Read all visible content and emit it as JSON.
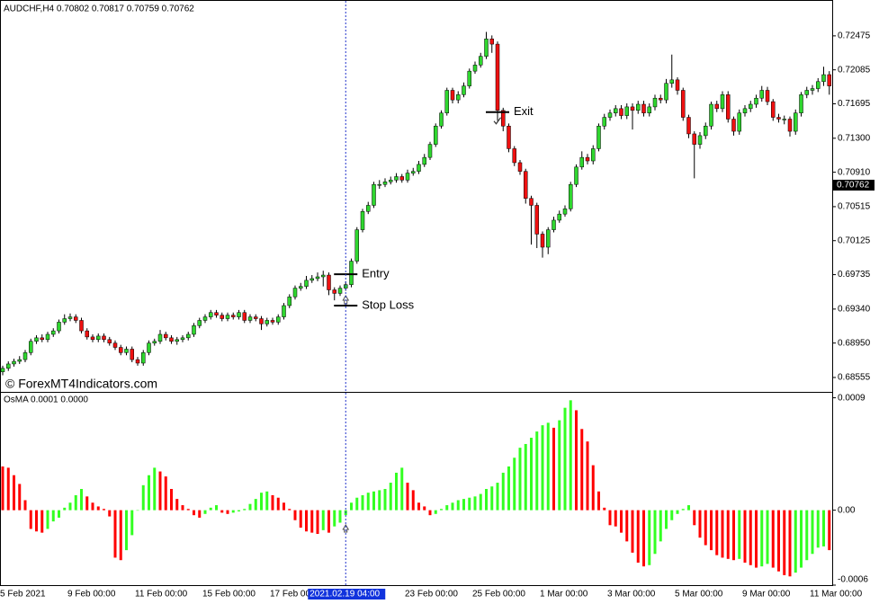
{
  "chart_data": [
    {
      "type": "candlestick",
      "title": "AUDCHF,H4 0.70802 0.70817 0.70759 0.70762",
      "watermark": "© ForexMT4Indicators.com",
      "up_color": "#2fd62f",
      "down_color": "#ee1111",
      "categories": [
        "5 Feb 2021",
        null,
        null,
        null,
        null,
        null,
        null,
        null,
        null,
        null,
        null,
        null,
        "9 Feb 00:00",
        null,
        null,
        null,
        null,
        null,
        null,
        null,
        null,
        null,
        null,
        null,
        "11 Feb 00:00",
        null,
        null,
        null,
        null,
        null,
        null,
        null,
        null,
        null,
        null,
        null,
        "15 Feb 00:00",
        null,
        null,
        null,
        null,
        null,
        null,
        null,
        null,
        null,
        null,
        null,
        "17 Feb 00:00",
        null,
        null,
        null,
        null,
        null,
        null,
        null,
        null,
        null,
        null,
        null,
        null,
        null,
        null,
        null,
        null,
        null,
        null,
        null,
        null,
        null,
        null,
        null,
        "23 Feb 00:00",
        null,
        null,
        null,
        null,
        null,
        null,
        null,
        null,
        null,
        null,
        null,
        "25 Feb 00:00",
        null,
        null,
        null,
        null,
        null,
        null,
        null,
        null,
        null,
        null,
        null,
        "1 Mar 00:00",
        null,
        null,
        null,
        null,
        null,
        null,
        null,
        null,
        null,
        null,
        null,
        "3 Mar 00:00",
        null,
        null,
        null,
        null,
        null,
        null,
        null,
        null,
        null,
        null,
        null,
        "5 Mar 00:00",
        null,
        null,
        null,
        null,
        null,
        null,
        null,
        null,
        null,
        null,
        null,
        "9 Mar 00:00",
        null,
        null,
        null,
        null,
        null,
        null,
        null,
        null,
        null,
        null,
        null,
        "11 Mar 00:00",
        null,
        null,
        null
      ],
      "open": [
        0.6862,
        0.6866,
        0.6871,
        0.6874,
        0.6876,
        0.6884,
        0.6897,
        0.6901,
        0.6899,
        0.6905,
        0.6909,
        0.6919,
        0.6923,
        0.6925,
        0.6921,
        0.6909,
        0.6902,
        0.6899,
        0.6903,
        0.6899,
        0.6895,
        0.689,
        0.6884,
        0.6888,
        0.6876,
        0.6872,
        0.6884,
        0.6895,
        0.6897,
        0.6905,
        0.6901,
        0.6897,
        0.6899,
        0.6901,
        0.6905,
        0.6915,
        0.6921,
        0.6925,
        0.693,
        0.6927,
        0.6923,
        0.6927,
        0.6925,
        0.693,
        0.6921,
        0.6925,
        0.6923,
        0.6917,
        0.6921,
        0.6919,
        0.6925,
        0.6938,
        0.6948,
        0.6958,
        0.696,
        0.6967,
        0.6969,
        0.6971,
        0.6973,
        0.6956,
        0.6952,
        0.6958,
        0.6962,
        0.6989,
        0.7025,
        0.7046,
        0.7053,
        0.7077,
        0.7077,
        0.708,
        0.7082,
        0.7086,
        0.7082,
        0.709,
        0.7092,
        0.71,
        0.7108,
        0.7123,
        0.7144,
        0.7159,
        0.7185,
        0.7174,
        0.718,
        0.719,
        0.7207,
        0.7214,
        0.7224,
        0.7244,
        0.7238,
        0.7162,
        0.7144,
        0.7118,
        0.7102,
        0.7092,
        0.7061,
        0.7053,
        0.702,
        0.7005,
        0.7025,
        0.7036,
        0.7043,
        0.7049,
        0.7077,
        0.7097,
        0.7108,
        0.7104,
        0.7118,
        0.7144,
        0.7154,
        0.7159,
        0.7164,
        0.7156,
        0.7166,
        0.7162,
        0.7169,
        0.7159,
        0.7166,
        0.7176,
        0.7174,
        0.7193,
        0.7197,
        0.7185,
        0.7154,
        0.7135,
        0.7123,
        0.7133,
        0.7144,
        0.7169,
        0.7164,
        0.718,
        0.7152,
        0.7138,
        0.7159,
        0.7164,
        0.7169,
        0.7176,
        0.7185,
        0.7172,
        0.7154,
        0.7152,
        0.7152,
        0.7138,
        0.7159,
        0.718,
        0.7185,
        0.7187,
        0.7195,
        0.7203
      ],
      "high": [
        0.6869,
        0.6874,
        0.6877,
        0.688,
        0.6887,
        0.69,
        0.6904,
        0.6905,
        0.6908,
        0.6912,
        0.6922,
        0.6928,
        0.6929,
        0.6928,
        0.6924,
        0.6912,
        0.6905,
        0.6906,
        0.6906,
        0.6902,
        0.6898,
        0.6893,
        0.6891,
        0.6891,
        0.6879,
        0.6887,
        0.6898,
        0.69,
        0.691,
        0.6908,
        0.6904,
        0.6902,
        0.6904,
        0.6908,
        0.6918,
        0.6924,
        0.6928,
        0.6933,
        0.6933,
        0.693,
        0.693,
        0.693,
        0.6933,
        0.6933,
        0.6928,
        0.6928,
        0.6926,
        0.6924,
        0.6924,
        0.6928,
        0.6941,
        0.6951,
        0.6961,
        0.6964,
        0.6972,
        0.6973,
        0.6976,
        0.6978,
        0.6976,
        0.6959,
        0.6961,
        0.6966,
        0.6992,
        0.7028,
        0.7049,
        0.7057,
        0.708,
        0.7082,
        0.7084,
        0.7086,
        0.709,
        0.7089,
        0.7094,
        0.7096,
        0.7104,
        0.7112,
        0.7126,
        0.7147,
        0.7162,
        0.7188,
        0.7188,
        0.7184,
        0.7194,
        0.721,
        0.7218,
        0.7228,
        0.7252,
        0.7248,
        0.7241,
        0.7165,
        0.7147,
        0.7121,
        0.7105,
        0.7095,
        0.7064,
        0.7056,
        0.7023,
        0.7028,
        0.704,
        0.7047,
        0.7053,
        0.708,
        0.71,
        0.7115,
        0.7112,
        0.7122,
        0.7147,
        0.7158,
        0.7163,
        0.7168,
        0.7168,
        0.717,
        0.717,
        0.7173,
        0.7173,
        0.717,
        0.718,
        0.718,
        0.7198,
        0.7226,
        0.72,
        0.7188,
        0.7157,
        0.7138,
        0.7137,
        0.7148,
        0.7172,
        0.7173,
        0.7184,
        0.7184,
        0.7155,
        0.7163,
        0.7168,
        0.7173,
        0.718,
        0.719,
        0.7189,
        0.7175,
        0.7158,
        0.7156,
        0.7155,
        0.7163,
        0.7183,
        0.7189,
        0.7191,
        0.7199,
        0.7212,
        0.7207
      ],
      "low": [
        0.6858,
        0.6863,
        0.6868,
        0.6871,
        0.6873,
        0.6881,
        0.6894,
        0.6896,
        0.6896,
        0.6902,
        0.6906,
        0.6916,
        0.692,
        0.6918,
        0.6906,
        0.6899,
        0.6896,
        0.6896,
        0.6896,
        0.6892,
        0.6887,
        0.6881,
        0.6881,
        0.6873,
        0.6869,
        0.6869,
        0.6881,
        0.6892,
        0.6894,
        0.6898,
        0.6894,
        0.6893,
        0.6896,
        0.6898,
        0.6902,
        0.6912,
        0.6918,
        0.6922,
        0.6924,
        0.692,
        0.692,
        0.6922,
        0.6922,
        0.6918,
        0.6918,
        0.692,
        0.691,
        0.6914,
        0.6916,
        0.6916,
        0.6922,
        0.6935,
        0.6945,
        0.6955,
        0.6957,
        0.6964,
        0.6966,
        0.696,
        0.695,
        0.6944,
        0.6949,
        0.6955,
        0.6959,
        0.6986,
        0.7022,
        0.7043,
        0.705,
        0.7072,
        0.7074,
        0.7077,
        0.7079,
        0.7079,
        0.7079,
        0.7087,
        0.7089,
        0.7097,
        0.7105,
        0.712,
        0.7141,
        0.7156,
        0.717,
        0.717,
        0.7177,
        0.7187,
        0.7204,
        0.7211,
        0.7221,
        0.7228,
        0.715,
        0.7138,
        0.7114,
        0.7098,
        0.7088,
        0.7055,
        0.7008,
        0.7004,
        0.6993,
        0.6997,
        0.7022,
        0.7033,
        0.704,
        0.7046,
        0.7074,
        0.7094,
        0.71,
        0.71,
        0.7115,
        0.714,
        0.715,
        0.7155,
        0.7152,
        0.7152,
        0.714,
        0.7158,
        0.7155,
        0.7155,
        0.7162,
        0.717,
        0.717,
        0.7188,
        0.718,
        0.715,
        0.713,
        0.7084,
        0.7118,
        0.7129,
        0.714,
        0.716,
        0.716,
        0.7148,
        0.7133,
        0.7134,
        0.7155,
        0.716,
        0.7165,
        0.7172,
        0.7168,
        0.715,
        0.7148,
        0.7146,
        0.7132,
        0.7134,
        0.7155,
        0.7176,
        0.718,
        0.7183,
        0.719,
        0.718
      ],
      "close": [
        0.6866,
        0.6871,
        0.6874,
        0.6876,
        0.6884,
        0.6897,
        0.6901,
        0.6899,
        0.6905,
        0.6909,
        0.6919,
        0.6923,
        0.6925,
        0.6921,
        0.6909,
        0.6902,
        0.6899,
        0.6903,
        0.6899,
        0.6895,
        0.689,
        0.6884,
        0.6888,
        0.6876,
        0.6872,
        0.6884,
        0.6895,
        0.6897,
        0.6905,
        0.6901,
        0.6897,
        0.6899,
        0.6901,
        0.6905,
        0.6915,
        0.6921,
        0.6925,
        0.693,
        0.6927,
        0.6923,
        0.6927,
        0.6925,
        0.693,
        0.6921,
        0.6925,
        0.6923,
        0.6917,
        0.6921,
        0.6919,
        0.6925,
        0.6938,
        0.6948,
        0.6958,
        0.696,
        0.6967,
        0.6969,
        0.6971,
        0.6973,
        0.6956,
        0.6952,
        0.6958,
        0.6962,
        0.6989,
        0.7025,
        0.7046,
        0.7053,
        0.7077,
        0.7077,
        0.708,
        0.7082,
        0.7086,
        0.7082,
        0.709,
        0.7092,
        0.71,
        0.7108,
        0.7123,
        0.7144,
        0.7159,
        0.7185,
        0.7174,
        0.718,
        0.719,
        0.7207,
        0.7214,
        0.7224,
        0.7244,
        0.7238,
        0.7162,
        0.7144,
        0.7118,
        0.7102,
        0.7092,
        0.7061,
        0.7053,
        0.702,
        0.7005,
        0.7025,
        0.7036,
        0.7043,
        0.7049,
        0.7077,
        0.7097,
        0.7108,
        0.7104,
        0.7118,
        0.7144,
        0.7154,
        0.7159,
        0.7164,
        0.7156,
        0.7166,
        0.7162,
        0.7169,
        0.7159,
        0.7166,
        0.7176,
        0.7174,
        0.7193,
        0.7197,
        0.7185,
        0.7154,
        0.7135,
        0.7123,
        0.7133,
        0.7144,
        0.7169,
        0.7164,
        0.718,
        0.7152,
        0.7138,
        0.7159,
        0.7164,
        0.7169,
        0.7176,
        0.7185,
        0.7172,
        0.7154,
        0.7152,
        0.7152,
        0.7138,
        0.7159,
        0.718,
        0.7185,
        0.7187,
        0.7195,
        0.7203,
        0.719
      ],
      "ylim": [
        0.684,
        0.72876
      ],
      "yticks": [
        0.72475,
        0.72085,
        0.71695,
        {
          "value": 0.713,
          "label": "0.71300"
        },
        {
          "value": 0.7091,
          "label": "0.70910"
        },
        0.70515,
        0.70125,
        0.69735,
        {
          "value": 0.6934,
          "label": "0.69340"
        },
        {
          "value": 0.6895,
          "label": "0.68950"
        },
        0.68555
      ],
      "last_price": 0.70762,
      "annotations": [
        {
          "text": "Entry",
          "value": 0.6974,
          "index": 61
        },
        {
          "text": "Stop Loss",
          "value": 0.6938,
          "index": 61
        },
        {
          "text": "Exit",
          "value": 0.716,
          "index": 88
        }
      ],
      "crosshair": {
        "index": 61,
        "label": "2021.02.19 04:00"
      }
    },
    {
      "type": "histogram",
      "title": "OsMA 0.0001 0.0000",
      "up_color": "#33ff22",
      "down_color": "#ff0000",
      "values": [
        0.00035,
        0.00034,
        0.00028,
        0.00021,
        8e-05,
        -0.00015,
        -0.00017,
        -0.00018,
        -0.00015,
        -9e-05,
        -6e-05,
        2e-05,
        6e-05,
        0.00012,
        0.00017,
        0.00011,
        6e-05,
        3e-05,
        1e-05,
        -5e-05,
        -0.00038,
        -0.0004,
        -0.00032,
        -0.0002,
        0,
        0.0002,
        0.00028,
        0.00034,
        0.00031,
        0.00027,
        0.00017,
        9e-05,
        4e-05,
        1e-05,
        -4e-05,
        -6e-05,
        -3e-05,
        2e-05,
        4e-05,
        -2e-05,
        -3e-05,
        -2e-05,
        -1e-05,
        1e-05,
        5e-05,
        9e-05,
        0.00014,
        0.00015,
        0.00012,
        0.0001,
        6e-05,
        1e-05,
        -8e-05,
        -0.00014,
        -0.00017,
        -0.00018,
        -0.00019,
        -0.00016,
        -0.00018,
        -0.00013,
        -0.0001,
        -4e-05,
        6e-05,
        0.0001,
        0.00012,
        0.00014,
        0.00015,
        0.00016,
        0.00017,
        0.00022,
        0.0003,
        0.00034,
        0.00022,
        0.00016,
        6e-05,
        3e-05,
        -4e-05,
        -3e-05,
        1e-05,
        4e-05,
        6e-05,
        8e-05,
        9e-05,
        0.0001,
        0.00011,
        0.00013,
        0.00017,
        0.00019,
        0.00022,
        0.0003,
        0.00035,
        0.00042,
        0.0005,
        0.00053,
        0.00058,
        0.00063,
        0.00068,
        0.0007,
        0.00066,
        0.00072,
        0.00082,
        0.00088,
        0.0008,
        0.00065,
        0.00055,
        0.00036,
        0.00015,
        2e-05,
        -0.00012,
        -0.00013,
        -0.00018,
        -0.00025,
        -0.00034,
        -0.00042,
        -0.00045,
        -0.00044,
        -0.00035,
        -0.00025,
        -0.00015,
        -8e-05,
        -3e-05,
        1e-05,
        4e-05,
        -0.00012,
        -0.00022,
        -0.00028,
        -0.00032,
        -0.00036,
        -0.00038,
        -0.00039,
        -0.0004,
        -0.00039,
        -0.00042,
        -0.00044,
        -0.00046,
        -0.00045,
        -0.00043,
        -0.00046,
        -0.00049,
        -0.00052,
        -0.00053,
        -0.0005,
        -0.00046,
        -0.0004,
        -0.00035,
        -0.0003,
        -0.00029,
        -0.00032
      ],
      "ylim": [
        -0.0006,
        0.00094
      ],
      "yticks": [
        0.0009,
        {
          "value": 0,
          "label": "0.00"
        },
        -0.0006
      ]
    }
  ]
}
